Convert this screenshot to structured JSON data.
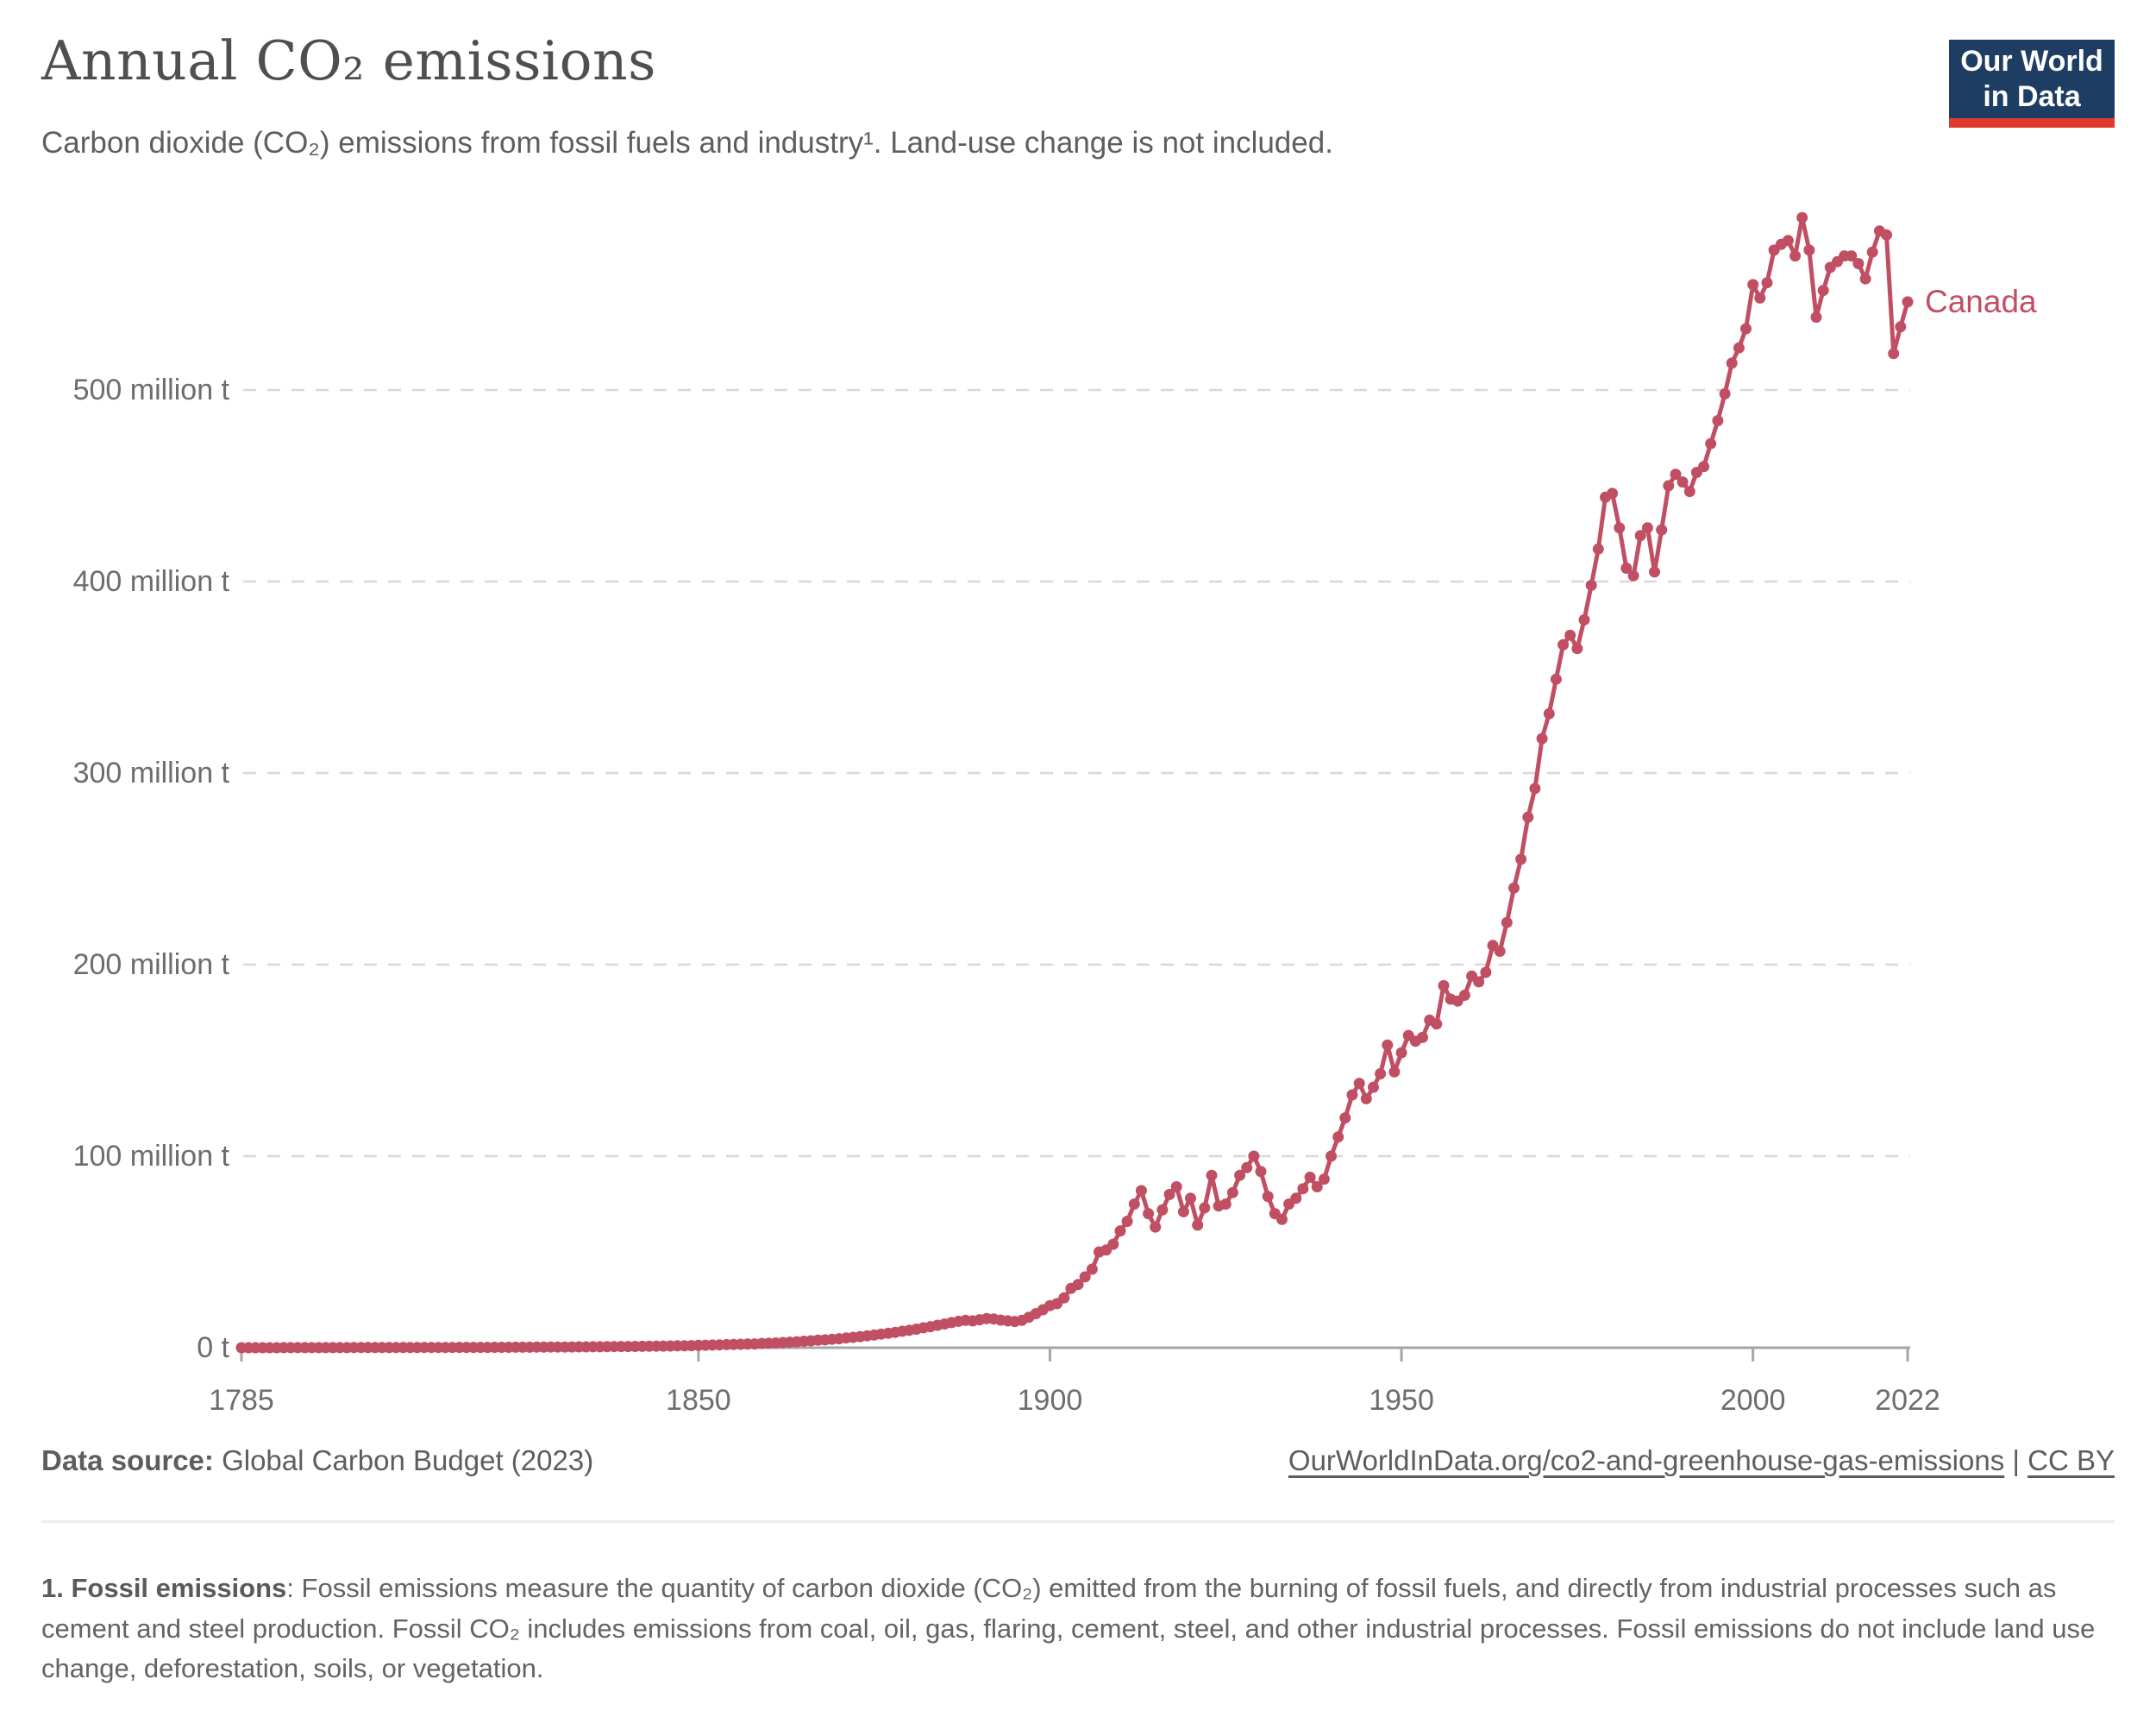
{
  "header": {
    "title": "Annual CO₂ emissions",
    "subtitle": "Carbon dioxide (CO₂) emissions from fossil fuels and industry¹. Land-use change is not included.",
    "logo": {
      "line1": "Our World",
      "line2": "in Data",
      "bg_color": "#1d3d63",
      "stripe_color": "#e2392e"
    }
  },
  "chart_data": {
    "type": "line",
    "title": "Annual CO₂ emissions",
    "unit": "million t",
    "series": [
      {
        "name": "Canada",
        "color": "#c14f64",
        "start_year": 1785,
        "end_year": 2022,
        "values": [
          0.01,
          0.01,
          0.01,
          0.02,
          0.02,
          0.02,
          0.03,
          0.03,
          0.03,
          0.04,
          0.04,
          0.05,
          0.05,
          0.05,
          0.06,
          0.06,
          0.07,
          0.07,
          0.08,
          0.08,
          0.09,
          0.09,
          0.1,
          0.1,
          0.11,
          0.11,
          0.12,
          0.13,
          0.13,
          0.14,
          0.15,
          0.16,
          0.17,
          0.18,
          0.19,
          0.2,
          0.21,
          0.22,
          0.24,
          0.25,
          0.27,
          0.28,
          0.3,
          0.32,
          0.34,
          0.36,
          0.38,
          0.41,
          0.43,
          0.46,
          0.48,
          0.51,
          0.54,
          0.58,
          0.61,
          0.65,
          0.69,
          0.73,
          0.77,
          0.82,
          0.87,
          0.92,
          0.97,
          1.0,
          1.1,
          1.2,
          1.3,
          1.4,
          1.5,
          1.6,
          1.7,
          1.8,
          1.9,
          2.0,
          2.2,
          2.3,
          2.5,
          2.7,
          2.9,
          3.1,
          3.4,
          3.6,
          3.9,
          4.1,
          4.4,
          4.7,
          5.1,
          5.4,
          5.8,
          6.2,
          6.6,
          7.1,
          7.5,
          8.0,
          8.6,
          9.1,
          9.7,
          10.4,
          11.0,
          11.7,
          12.4,
          13.1,
          13.8,
          14.3,
          14.0,
          14.6,
          15.2,
          15.0,
          14.4,
          14.0,
          13.7,
          14.3,
          15.9,
          17.8,
          19.8,
          22,
          23,
          26,
          31,
          33,
          37,
          41,
          50,
          51,
          54,
          61,
          66,
          75,
          82,
          70,
          63,
          72,
          80,
          84,
          71,
          78,
          64,
          73,
          90,
          74,
          75,
          81,
          90,
          94,
          100,
          92,
          79,
          70,
          67,
          75,
          78,
          83,
          89,
          84,
          88,
          100,
          110,
          120,
          132,
          138,
          130,
          136,
          143,
          158,
          144,
          154,
          163,
          160,
          162,
          171,
          169,
          189,
          182,
          181,
          184,
          194,
          191,
          196,
          210,
          207,
          222,
          240,
          255,
          277,
          292,
          318,
          331,
          349,
          367,
          372,
          365,
          380,
          398,
          417,
          444,
          446,
          428,
          407,
          403,
          424,
          428,
          405,
          427,
          450,
          456,
          452,
          447,
          457,
          460,
          472,
          484,
          498,
          514,
          522,
          532,
          555,
          548,
          556,
          573,
          576,
          578,
          570,
          590,
          573,
          538,
          552,
          564,
          567,
          570,
          570,
          566,
          558,
          572,
          583,
          581,
          519,
          533,
          546
        ]
      }
    ],
    "xlabel": "",
    "ylabel": "",
    "x_ticks": [
      {
        "year": 1785,
        "label": "1785"
      },
      {
        "year": 1850,
        "label": "1850"
      },
      {
        "year": 1900,
        "label": "1900"
      },
      {
        "year": 1950,
        "label": "1950"
      },
      {
        "year": 2000,
        "label": "2000"
      },
      {
        "year": 2022,
        "label": "2022"
      }
    ],
    "y_ticks": [
      {
        "value": 0,
        "label": "0 t"
      },
      {
        "value": 100,
        "label": "100 million t"
      },
      {
        "value": 200,
        "label": "200 million t"
      },
      {
        "value": 300,
        "label": "300 million t"
      },
      {
        "value": 400,
        "label": "400 million t"
      },
      {
        "value": 500,
        "label": "500 million t"
      }
    ],
    "xlim": [
      1785,
      2022
    ],
    "ylim": [
      0,
      600
    ],
    "grid": "dashed horizontal",
    "legend_position": "line-end",
    "entity_label": "Canada",
    "colors": {
      "line": "#c14f64",
      "grid": "#d8d8d8",
      "axis": "#a6a6a6",
      "tick_text": "#6d6d6d"
    }
  },
  "footer": {
    "datasource_label": "Data source:",
    "datasource_value": " Global Carbon Budget (2023)",
    "link_owid": "OurWorldInData.org/co2-and-greenhouse-gas-emissions",
    "separator": " | ",
    "link_ccby": "CC BY"
  },
  "footnote": {
    "label": "1. Fossil emissions",
    "text": ": Fossil emissions measure the quantity of carbon dioxide (CO₂) emitted from the burning of fossil fuels, and directly from industrial processes such as cement and steel production. Fossil CO₂ includes emissions from coal, oil, gas, flaring, cement, steel, and other industrial processes. Fossil emissions do not include land use change, deforestation, soils, or vegetation."
  }
}
